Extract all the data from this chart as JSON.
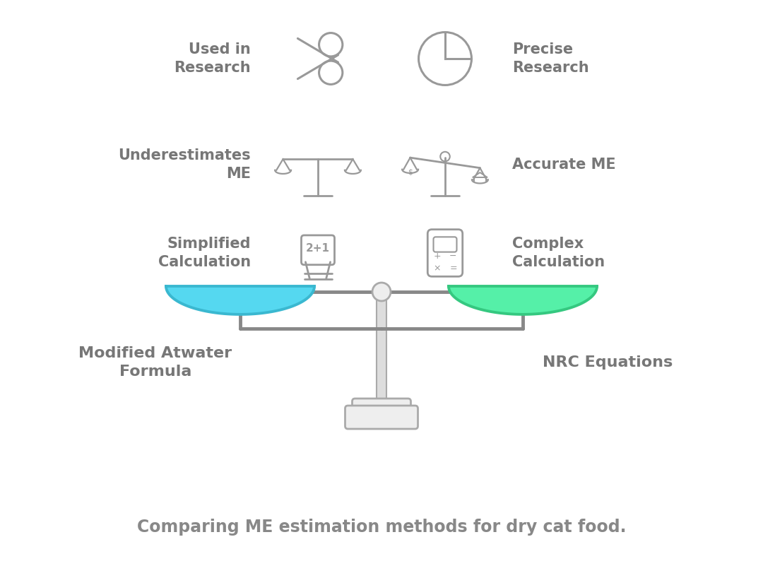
{
  "bg_color": "#ffffff",
  "scale_line_color": "#888888",
  "left_bowl_fill": "#55d8f0",
  "right_bowl_fill": "#55f0a8",
  "left_bowl_edge": "#3ab8d0",
  "right_bowl_edge": "#35c880",
  "pole_color": "#dddddd",
  "pole_edge": "#aaaaaa",
  "icon_color": "#999999",
  "text_color": "#777777",
  "label_color": "#777777",
  "subtitle_color": "#888888",
  "left_label": "Modified Atwater\nFormula",
  "right_label": "NRC Equations",
  "subtitle": "Comparing ME estimation methods for dry cat food.",
  "pivot_fill": "#eeeeee",
  "pivot_edge": "#aaaaaa",
  "base_fill": "#eeeeee",
  "base_edge": "#aaaaaa"
}
